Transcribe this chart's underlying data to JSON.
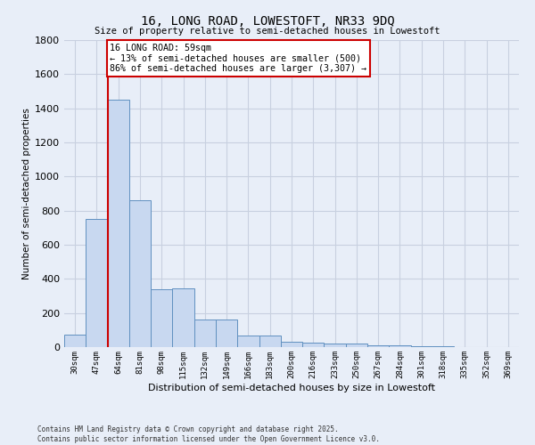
{
  "title1": "16, LONG ROAD, LOWESTOFT, NR33 9DQ",
  "title2": "Size of property relative to semi-detached houses in Lowestoft",
  "xlabel": "Distribution of semi-detached houses by size in Lowestoft",
  "ylabel": "Number of semi-detached properties",
  "categories": [
    "30sqm",
    "47sqm",
    "64sqm",
    "81sqm",
    "98sqm",
    "115sqm",
    "132sqm",
    "149sqm",
    "166sqm",
    "183sqm",
    "200sqm",
    "216sqm",
    "233sqm",
    "250sqm",
    "267sqm",
    "284sqm",
    "301sqm",
    "318sqm",
    "335sqm",
    "352sqm",
    "369sqm"
  ],
  "values": [
    75,
    750,
    1450,
    860,
    340,
    345,
    160,
    160,
    70,
    68,
    30,
    28,
    20,
    20,
    10,
    10,
    5,
    4,
    2,
    2,
    1
  ],
  "bar_color": "#c8d8f0",
  "bar_edge_color": "#6090c0",
  "vline_color": "#cc0000",
  "annotation_text": "16 LONG ROAD: 59sqm\n← 13% of semi-detached houses are smaller (500)\n86% of semi-detached houses are larger (3,307) →",
  "annotation_box_color": "#ffffff",
  "annotation_box_edge": "#cc0000",
  "grid_color": "#c8d0e0",
  "background_color": "#e8eef8",
  "ylim": [
    0,
    1800
  ],
  "yticks": [
    0,
    200,
    400,
    600,
    800,
    1000,
    1200,
    1400,
    1600,
    1800
  ],
  "vline_x": 1.5,
  "footer1": "Contains HM Land Registry data © Crown copyright and database right 2025.",
  "footer2": "Contains public sector information licensed under the Open Government Licence v3.0."
}
